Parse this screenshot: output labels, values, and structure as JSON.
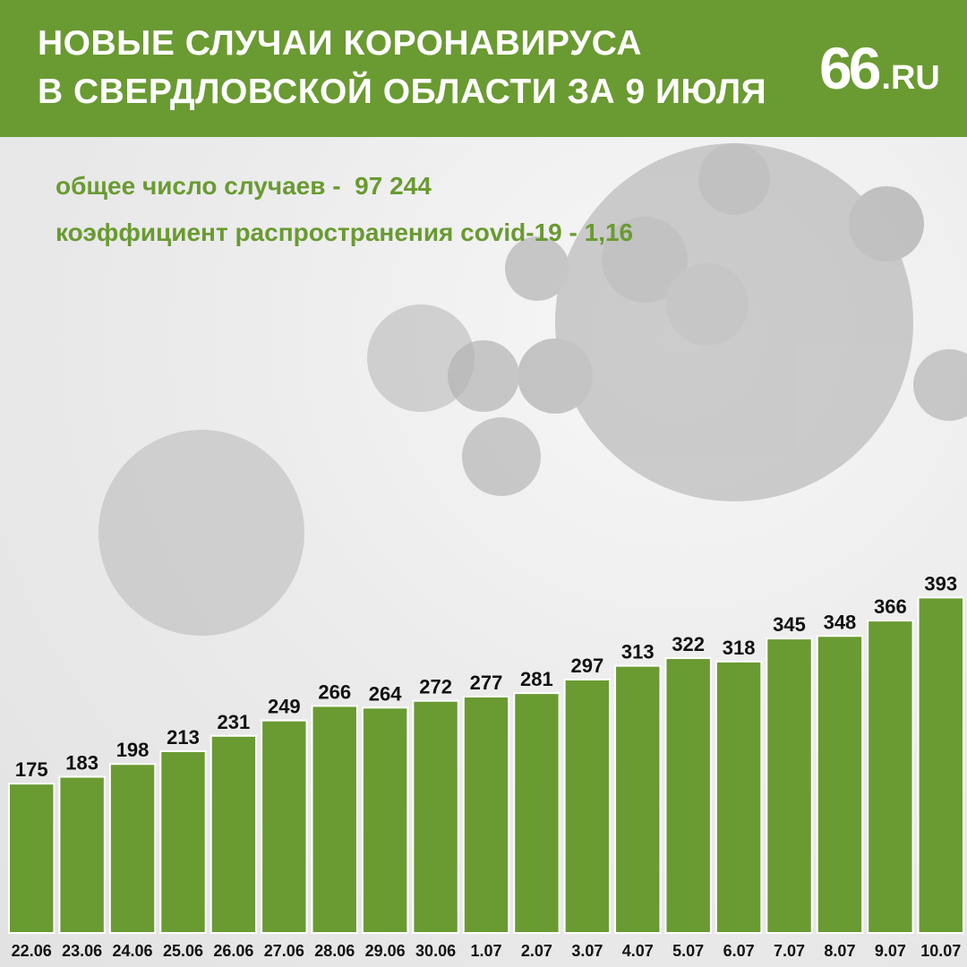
{
  "header": {
    "title_line1": "НОВЫЕ СЛУЧАИ КОРОНАВИРУСА",
    "title_line2": "В СВЕРДЛОВСКОЙ ОБЛАСТИ ЗА 9 ИЮЛЯ",
    "logo_main": "66",
    "logo_suffix": ".RU"
  },
  "stats": {
    "total_label": "общее число случаев -  ",
    "total_value": "97 244",
    "rt_label": "коэффициент распространения covid-19 - ",
    "rt_value": "1,16"
  },
  "colors": {
    "brand_green": "#6a9a32",
    "bar_green": "#6a9a32",
    "header_text": "#ffffff",
    "value_text": "#111111"
  },
  "chart_data": {
    "type": "bar",
    "categories": [
      "22.06",
      "23.06",
      "24.06",
      "25.06",
      "26.06",
      "27.06",
      "28.06",
      "29.06",
      "30.06",
      "1.07",
      "2.07",
      "3.07",
      "4.07",
      "5.07",
      "6.07",
      "7.07",
      "8.07",
      "9.07",
      "10.07"
    ],
    "values": [
      175,
      183,
      198,
      213,
      231,
      249,
      266,
      264,
      272,
      277,
      281,
      297,
      313,
      322,
      318,
      345,
      348,
      366,
      393
    ],
    "title": "НОВЫЕ СЛУЧАИ КОРОНАВИРУСА В СВЕРДЛОВСКОЙ ОБЛАСТИ ЗА 9 ИЮЛЯ",
    "xlabel": "",
    "ylabel": "",
    "grid": false,
    "data_labels": true
  }
}
